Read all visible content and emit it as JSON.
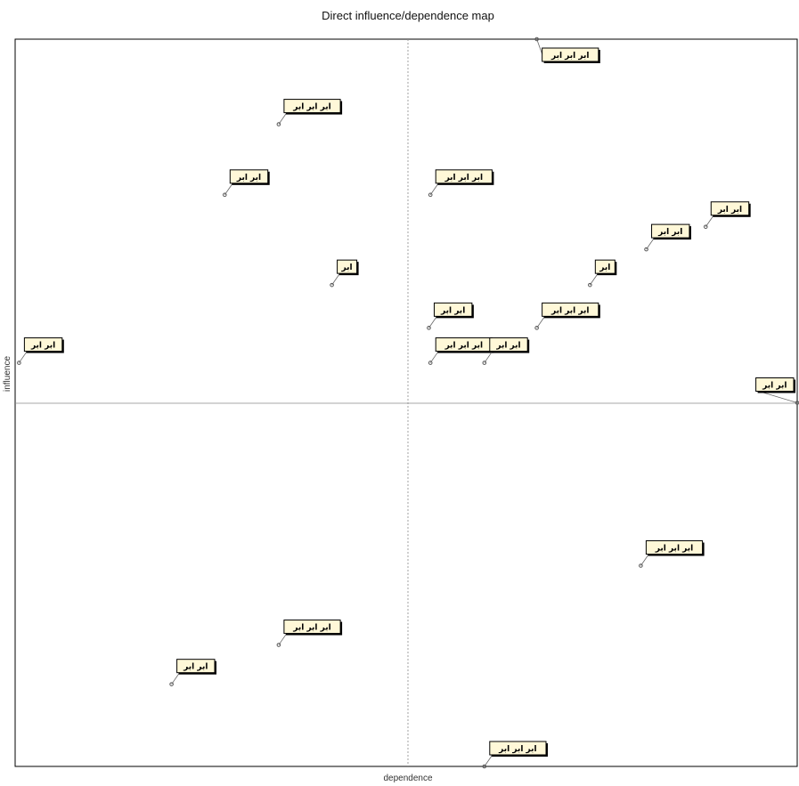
{
  "chart_data": {
    "type": "scatter",
    "title": "Direct influence/dependence map",
    "xlabel": "dependence",
    "ylabel": "influence",
    "xlim": [
      0,
      100
    ],
    "ylim": [
      0,
      100
    ],
    "midlines": {
      "x": 50,
      "y": 50
    },
    "colors": {
      "frame": "#000000",
      "midline": "#8a8a8a",
      "label_fill": "#fff8d8",
      "point": "#555555"
    },
    "points": [
      {
        "label": "ابر ابر ابر",
        "x": 66.7,
        "y": 100
      },
      {
        "label": "ابر ابر ابر",
        "x": 33.7,
        "y": 88.3
      },
      {
        "label": "ابر ابر",
        "x": 26.8,
        "y": 78.6
      },
      {
        "label": "ابر ابر ابر",
        "x": 53.1,
        "y": 78.6
      },
      {
        "label": "ابر ابر",
        "x": 88.3,
        "y": 74.2
      },
      {
        "label": "ابر ابر",
        "x": 80.7,
        "y": 71.1
      },
      {
        "label": "ابر",
        "x": 73.5,
        "y": 66.2
      },
      {
        "label": "ابر",
        "x": 40.5,
        "y": 66.2
      },
      {
        "label": "ابر ابر",
        "x": 0.5,
        "y": 55.5
      },
      {
        "label": "ابر ابر",
        "x": 52.9,
        "y": 60.3
      },
      {
        "label": "ابر ابر ابر",
        "x": 53.1,
        "y": 55.5
      },
      {
        "label": "ابر ابر",
        "x": 60.0,
        "y": 55.5
      },
      {
        "label": "ابر ابر ابر",
        "x": 66.7,
        "y": 60.3
      },
      {
        "label": "ابر ابر",
        "x": 100,
        "y": 50.0
      },
      {
        "label": "ابر ابر ابر",
        "x": 80.0,
        "y": 27.6
      },
      {
        "label": "ابر ابر ابر",
        "x": 33.7,
        "y": 16.7
      },
      {
        "label": "ابر ابر",
        "x": 20.0,
        "y": 11.3
      },
      {
        "label": "ابر ابر ابر",
        "x": 60.0,
        "y": 0.0
      }
    ]
  }
}
